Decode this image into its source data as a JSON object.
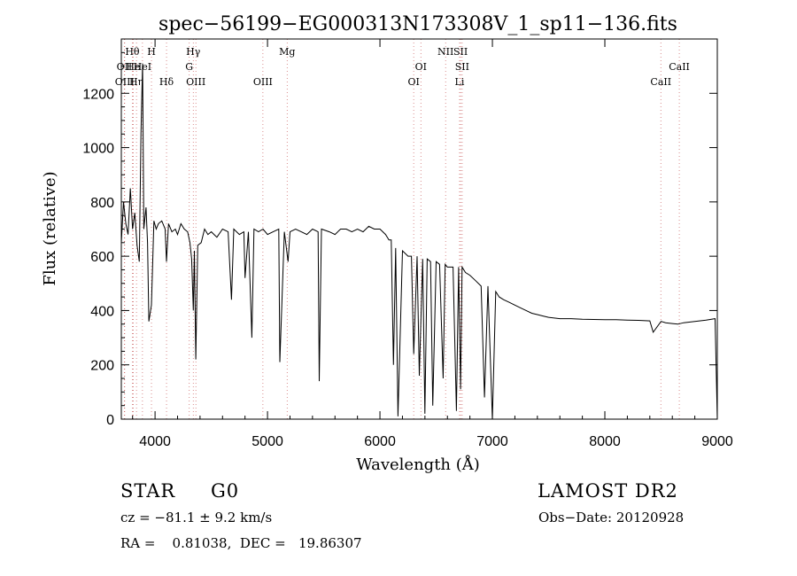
{
  "chart_data": {
    "type": "line",
    "title": "spec−56199−EG000313N173308V_1_sp11−136.fits",
    "xlabel": "Wavelength (Å)",
    "ylabel": "Flux (relative)",
    "xlim": [
      3700,
      9000
    ],
    "ylim": [
      0,
      1400
    ],
    "xticks": [
      4000,
      5000,
      6000,
      7000,
      8000,
      9000
    ],
    "yticks": [
      0,
      200,
      400,
      600,
      800,
      1000,
      1200
    ],
    "grid": false,
    "series": [
      {
        "x": [
          3700,
          3720,
          3740,
          3760,
          3780,
          3800,
          3820,
          3840,
          3860,
          3875,
          3889,
          3900,
          3920,
          3933,
          3945,
          3968,
          3990,
          4010,
          4030,
          4060,
          4090,
          4102,
          4120,
          4150,
          4180,
          4200,
          4230,
          4260,
          4290,
          4310,
          4325,
          4340,
          4350,
          4362,
          4380,
          4410,
          4440,
          4470,
          4500,
          4550,
          4600,
          4650,
          4680,
          4700,
          4750,
          4790,
          4800,
          4830,
          4861,
          4880,
          4920,
          4960,
          5000,
          5050,
          5100,
          5110,
          5150,
          5183,
          5200,
          5250,
          5300,
          5350,
          5400,
          5450,
          5460,
          5480,
          5550,
          5600,
          5650,
          5700,
          5750,
          5800,
          5850,
          5900,
          5950,
          6000,
          6050,
          6080,
          6100,
          6120,
          6140,
          6160,
          6200,
          6250,
          6280,
          6300,
          6330,
          6350,
          6380,
          6400,
          6420,
          6450,
          6470,
          6500,
          6530,
          6562,
          6580,
          6600,
          6650,
          6680,
          6700,
          6717,
          6730,
          6760,
          6800,
          6850,
          6900,
          6930,
          6960,
          7000,
          7030,
          7060,
          7100,
          7150,
          7200,
          7250,
          7300,
          7350,
          7400,
          7450,
          7500,
          7600,
          7700,
          7800,
          7900,
          8000,
          8100,
          8200,
          8300,
          8400,
          8430,
          8500,
          8540,
          8600,
          8650,
          8700,
          8800,
          8900,
          8980,
          9000
        ],
        "y": [
          650,
          800,
          720,
          680,
          850,
          700,
          760,
          640,
          580,
          1050,
          1310,
          700,
          780,
          650,
          360,
          420,
          730,
          700,
          720,
          730,
          700,
          580,
          720,
          690,
          700,
          680,
          720,
          700,
          690,
          650,
          590,
          400,
          620,
          220,
          640,
          650,
          700,
          680,
          690,
          670,
          700,
          690,
          440,
          700,
          680,
          690,
          520,
          690,
          300,
          700,
          690,
          700,
          680,
          690,
          700,
          210,
          690,
          580,
          690,
          700,
          690,
          680,
          700,
          690,
          140,
          700,
          690,
          680,
          700,
          700,
          690,
          700,
          690,
          710,
          700,
          700,
          680,
          660,
          660,
          200,
          630,
          10,
          620,
          600,
          600,
          240,
          600,
          160,
          590,
          20,
          590,
          580,
          50,
          580,
          570,
          150,
          570,
          560,
          560,
          30,
          560,
          110,
          560,
          540,
          530,
          510,
          490,
          80,
          490,
          0,
          470,
          450,
          440,
          430,
          420,
          410,
          400,
          390,
          385,
          380,
          375,
          370,
          370,
          368,
          367,
          366,
          366,
          365,
          364,
          362,
          320,
          360,
          355,
          352,
          350,
          355,
          360,
          365,
          370,
          0
        ]
      }
    ],
    "lines": [
      {
        "label": "Hθ",
        "wavelength": 3798
      },
      {
        "label": "OII",
        "wavelength": 3727
      },
      {
        "label": "OIII",
        "wavelength": 3730
      },
      {
        "label": "He",
        "wavelength": 3806
      },
      {
        "label": "Hη",
        "wavelength": 3835
      },
      {
        "label": "H",
        "wavelength": 3968
      },
      {
        "label": "HeI",
        "wavelength": 3888
      },
      {
        "label": "Hδ",
        "wavelength": 4102
      },
      {
        "label": "Hγ",
        "wavelength": 4340
      },
      {
        "label": "G",
        "wavelength": 4304
      },
      {
        "label": "OIII",
        "wavelength": 4363
      },
      {
        "label": "OIII",
        "wavelength": 4959
      },
      {
        "label": "Mg",
        "wavelength": 5175
      },
      {
        "label": "OI",
        "wavelength": 6364
      },
      {
        "label": "OI",
        "wavelength": 6300
      },
      {
        "label": "NII",
        "wavelength": 6584
      },
      {
        "label": "SII",
        "wavelength": 6717
      },
      {
        "label": "SII",
        "wavelength": 6731
      },
      {
        "label": "Li",
        "wavelength": 6708
      },
      {
        "label": "CaII",
        "wavelength": 8662
      },
      {
        "label": "CaII",
        "wavelength": 8498
      }
    ]
  },
  "info": {
    "class_label": "STAR",
    "subclass": "G0",
    "survey": "LAMOST DR2",
    "cz": "cz = −81.1 ± 9.2 km/s",
    "obs_date": "Obs−Date: 20120928",
    "coords": "RA =    0.81038,  DEC =   19.86307"
  }
}
